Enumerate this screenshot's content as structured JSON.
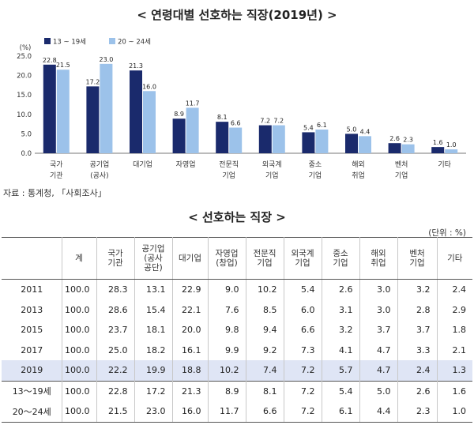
{
  "chart_title": "< 연령대별 선호하는 직장(2019년) >",
  "table_title": "< 선호하는 직장 >",
  "source": "자료 : 통계청, 「사회조사」",
  "unit": "(단위 : %)",
  "colors": {
    "series1": "#1a2a6c",
    "series2": "#9cc2ea"
  },
  "chart_data": {
    "type": "bar",
    "ylabel": "(%)",
    "ylim": [
      0,
      25
    ],
    "yticks": [
      "0.0",
      "5.0",
      "10.0",
      "15.0",
      "20.0",
      "25.0"
    ],
    "legend_position": "top-left",
    "categories": [
      [
        "국가",
        "기관"
      ],
      [
        "공기업",
        "(공사)"
      ],
      [
        "대기업"
      ],
      [
        "자영업"
      ],
      [
        "전문직",
        "기업"
      ],
      [
        "외국계",
        "기업"
      ],
      [
        "중소",
        "기업"
      ],
      [
        "해외",
        "취업"
      ],
      [
        "벤처",
        "기업"
      ],
      [
        "기타"
      ]
    ],
    "series": [
      {
        "name": "13 ~ 19세",
        "values": [
          22.8,
          17.2,
          21.3,
          8.9,
          8.1,
          7.2,
          5.4,
          5.0,
          2.6,
          1.6
        ],
        "labels": [
          "22.8",
          "17.2",
          "21.3",
          "8.9",
          "8.1",
          "7.2",
          "5.4",
          "5.0",
          "2.6",
          "1.6"
        ]
      },
      {
        "name": "20 ~ 24세",
        "values": [
          21.5,
          23.0,
          16.0,
          11.7,
          6.6,
          7.2,
          6.1,
          4.4,
          2.3,
          1.0
        ],
        "labels": [
          "21.5",
          "23.0",
          "16.0",
          "11.7",
          "6.6",
          "7.2",
          "6.1",
          "4.4",
          "2.3",
          "1.0"
        ]
      }
    ]
  },
  "table": {
    "headers": [
      [
        ""
      ],
      [
        "계"
      ],
      [
        "국가",
        "기관"
      ],
      [
        "공기업",
        "(공사",
        "공단)"
      ],
      [
        "대기업"
      ],
      [
        "자영업",
        "(창업)"
      ],
      [
        "전문직",
        "기업"
      ],
      [
        "외국계",
        "기업"
      ],
      [
        "중소",
        "기업"
      ],
      [
        "해외",
        "취업"
      ],
      [
        "벤처",
        "기업"
      ],
      [
        "기타"
      ]
    ],
    "rows": [
      [
        "2011",
        "100.0",
        "28.3",
        "13.1",
        "22.9",
        "9.0",
        "10.2",
        "5.4",
        "2.6",
        "3.0",
        "3.2",
        "2.4"
      ],
      [
        "2013",
        "100.0",
        "28.6",
        "15.4",
        "22.1",
        "7.6",
        "8.5",
        "6.0",
        "3.1",
        "3.0",
        "2.8",
        "2.9"
      ],
      [
        "2015",
        "100.0",
        "23.7",
        "18.1",
        "20.0",
        "9.8",
        "9.4",
        "6.6",
        "3.2",
        "3.7",
        "3.7",
        "1.8"
      ],
      [
        "2017",
        "100.0",
        "25.0",
        "18.2",
        "16.1",
        "9.9",
        "9.2",
        "7.3",
        "4.1",
        "4.7",
        "3.3",
        "2.1"
      ],
      [
        "2019",
        "100.0",
        "22.2",
        "19.9",
        "18.8",
        "10.2",
        "7.4",
        "7.2",
        "5.7",
        "4.7",
        "2.4",
        "1.3"
      ],
      [
        "13～19세",
        "100.0",
        "22.8",
        "17.2",
        "21.3",
        "8.9",
        "8.1",
        "7.2",
        "5.4",
        "5.0",
        "2.6",
        "1.6"
      ],
      [
        "20～24세",
        "100.0",
        "21.5",
        "23.0",
        "16.0",
        "11.7",
        "6.6",
        "7.2",
        "6.1",
        "4.4",
        "2.3",
        "1.0"
      ]
    ]
  }
}
